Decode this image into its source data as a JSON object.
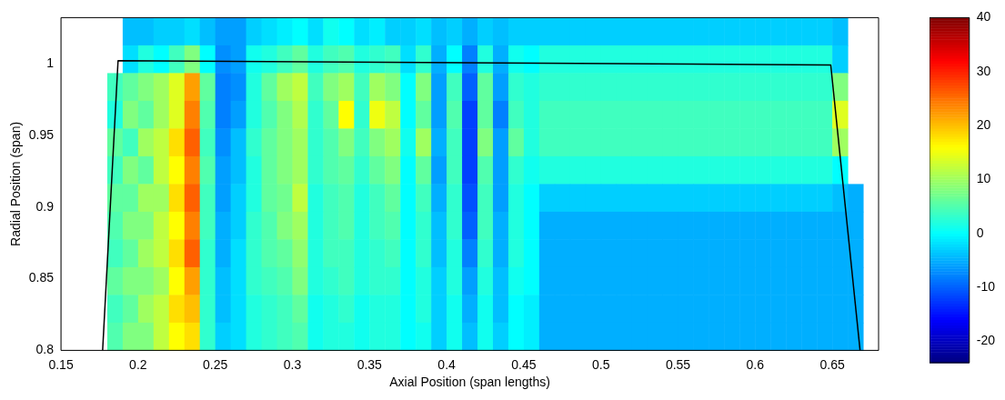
{
  "chart_data": {
    "type": "heatmap",
    "xlabel": "Axial Position (span lengths)",
    "ylabel": "Radial Position (span)",
    "xlim": [
      0.15,
      0.68
    ],
    "xticks": [
      0.15,
      0.2,
      0.25,
      0.3,
      0.35,
      0.4,
      0.45,
      0.5,
      0.55,
      0.6,
      0.65
    ],
    "ylim": [
      0.8,
      1.032
    ],
    "yticks": [
      0.8,
      0.85,
      0.9,
      0.95,
      1
    ],
    "clim": [
      -24,
      40
    ],
    "cticks": [
      -20,
      -10,
      0,
      10,
      20,
      30,
      40
    ],
    "marker": "none",
    "cells": [
      [
        null,
        null,
        null,
        null,
        -4,
        -4,
        -3,
        -3,
        -2,
        -4,
        -6,
        -6,
        -3,
        -2,
        -1,
        0,
        -2,
        1,
        0,
        -2,
        -1,
        -3,
        -3,
        -2,
        -4,
        -3,
        -5,
        -3,
        -4,
        -3,
        -3,
        -3,
        -3,
        -3,
        -3,
        -3,
        -3,
        -3,
        -3,
        -3,
        -3,
        -3,
        -3,
        -3,
        -3,
        -3,
        -3,
        -3,
        -3,
        -3,
        -4,
        null,
        null
      ],
      [
        null,
        null,
        null,
        null,
        -2,
        2,
        0,
        4,
        8,
        0,
        -7,
        -6,
        1,
        2,
        4,
        6,
        2,
        4,
        5,
        2,
        3,
        4,
        -2,
        3,
        -5,
        0,
        -8,
        2,
        -5,
        1,
        0,
        2,
        2,
        2,
        2,
        2,
        2,
        2,
        2,
        2,
        2,
        2,
        2,
        2,
        2,
        2,
        2,
        2,
        2,
        2,
        -3,
        null,
        null
      ],
      [
        null,
        null,
        null,
        4,
        6,
        8,
        10,
        14,
        22,
        6,
        -8,
        -7,
        2,
        6,
        10,
        12,
        4,
        8,
        10,
        4,
        10,
        8,
        0,
        8,
        -6,
        4,
        -10,
        6,
        -6,
        3,
        2,
        3,
        3,
        3,
        3,
        3,
        3,
        3,
        3,
        3,
        3,
        3,
        3,
        3,
        3,
        3,
        3,
        3,
        3,
        3,
        8,
        null,
        null
      ],
      [
        null,
        null,
        null,
        2,
        8,
        6,
        10,
        14,
        24,
        5,
        -8,
        -6,
        2,
        5,
        8,
        11,
        3,
        6,
        16,
        3,
        15,
        12,
        0,
        6,
        -6,
        5,
        -12,
        6,
        -8,
        4,
        2,
        4,
        4,
        4,
        4,
        4,
        4,
        4,
        4,
        4,
        4,
        4,
        4,
        4,
        4,
        4,
        4,
        4,
        4,
        4,
        14,
        null,
        null
      ],
      [
        null,
        null,
        null,
        6,
        4,
        10,
        12,
        18,
        26,
        4,
        -7,
        -4,
        3,
        6,
        8,
        10,
        3,
        5,
        8,
        4,
        8,
        10,
        1,
        10,
        -5,
        4,
        -12,
        8,
        -6,
        6,
        2,
        4,
        4,
        4,
        4,
        4,
        4,
        4,
        4,
        4,
        4,
        4,
        4,
        4,
        4,
        4,
        4,
        4,
        4,
        4,
        10,
        null,
        null
      ],
      [
        null,
        null,
        null,
        4,
        8,
        6,
        12,
        16,
        24,
        5,
        -6,
        -4,
        2,
        6,
        8,
        10,
        3,
        5,
        6,
        3,
        6,
        8,
        0,
        6,
        -6,
        4,
        -12,
        5,
        -6,
        3,
        1,
        2,
        2,
        2,
        2,
        2,
        2,
        2,
        2,
        2,
        2,
        2,
        2,
        2,
        2,
        2,
        2,
        2,
        2,
        2,
        0,
        null,
        null
      ],
      [
        null,
        null,
        null,
        6,
        6,
        10,
        10,
        18,
        26,
        4,
        -6,
        -3,
        2,
        6,
        7,
        12,
        2,
        4,
        5,
        2,
        4,
        6,
        0,
        4,
        -5,
        3,
        -11,
        4,
        -6,
        2,
        0,
        -3,
        -3,
        -3,
        -3,
        -3,
        -3,
        -3,
        -3,
        -3,
        -3,
        -3,
        -3,
        -3,
        -3,
        -3,
        -3,
        -3,
        -3,
        -3,
        -4,
        -5,
        null
      ],
      [
        null,
        null,
        null,
        5,
        8,
        8,
        12,
        16,
        24,
        4,
        -5,
        -3,
        3,
        5,
        8,
        10,
        2,
        4,
        5,
        2,
        4,
        5,
        0,
        3,
        -4,
        3,
        -10,
        4,
        -5,
        2,
        0,
        -5,
        -5,
        -5,
        -5,
        -5,
        -5,
        -5,
        -5,
        -5,
        -5,
        -5,
        -5,
        -5,
        -5,
        -5,
        -5,
        -5,
        -5,
        -5,
        -5,
        -5,
        null
      ],
      [
        null,
        null,
        null,
        4,
        6,
        10,
        12,
        18,
        26,
        3,
        -5,
        -2,
        3,
        5,
        6,
        9,
        2,
        4,
        4,
        2,
        3,
        4,
        0,
        3,
        -4,
        2,
        -8,
        3,
        -5,
        2,
        0,
        -5,
        -5,
        -5,
        -5,
        -5,
        -5,
        -5,
        -5,
        -5,
        -5,
        -5,
        -5,
        -5,
        -5,
        -5,
        -5,
        -5,
        -5,
        -5,
        -5,
        -5,
        null
      ],
      [
        null,
        null,
        null,
        6,
        8,
        8,
        10,
        16,
        22,
        3,
        -4,
        -2,
        3,
        4,
        5,
        8,
        2,
        3,
        4,
        2,
        3,
        3,
        0,
        2,
        -3,
        2,
        -6,
        2,
        -4,
        1,
        0,
        -5,
        -5,
        -5,
        -5,
        -5,
        -5,
        -5,
        -5,
        -5,
        -5,
        -5,
        -5,
        -5,
        -5,
        -5,
        -5,
        -5,
        -5,
        -5,
        -5,
        -5,
        null
      ],
      [
        null,
        null,
        null,
        4,
        6,
        10,
        12,
        18,
        20,
        3,
        -4,
        -2,
        2,
        3,
        4,
        6,
        1,
        2,
        3,
        1,
        2,
        2,
        0,
        2,
        -3,
        1,
        -5,
        1,
        -4,
        0,
        -1,
        -5,
        -5,
        -5,
        -5,
        -5,
        -5,
        -5,
        -5,
        -5,
        -5,
        -5,
        -5,
        -5,
        -5,
        -5,
        -5,
        -5,
        -5,
        -5,
        -5,
        -5,
        null
      ],
      [
        null,
        null,
        null,
        5,
        8,
        8,
        12,
        16,
        18,
        3,
        -3,
        -2,
        2,
        3,
        4,
        5,
        1,
        2,
        2,
        1,
        2,
        2,
        0,
        1,
        -3,
        1,
        -4,
        1,
        -3,
        0,
        -1,
        -5,
        -5,
        -5,
        -5,
        -5,
        -5,
        -5,
        -5,
        -5,
        -5,
        -5,
        -5,
        -5,
        -5,
        -5,
        -5,
        -5,
        -5,
        -5,
        -5,
        -5,
        null
      ]
    ],
    "series": [
      {
        "type": "line",
        "color": "#000000",
        "x": [
          0.177,
          0.187,
          0.649,
          0.668
        ],
        "values": [
          0.8,
          1.002,
          0.999,
          0.8
        ]
      }
    ]
  }
}
